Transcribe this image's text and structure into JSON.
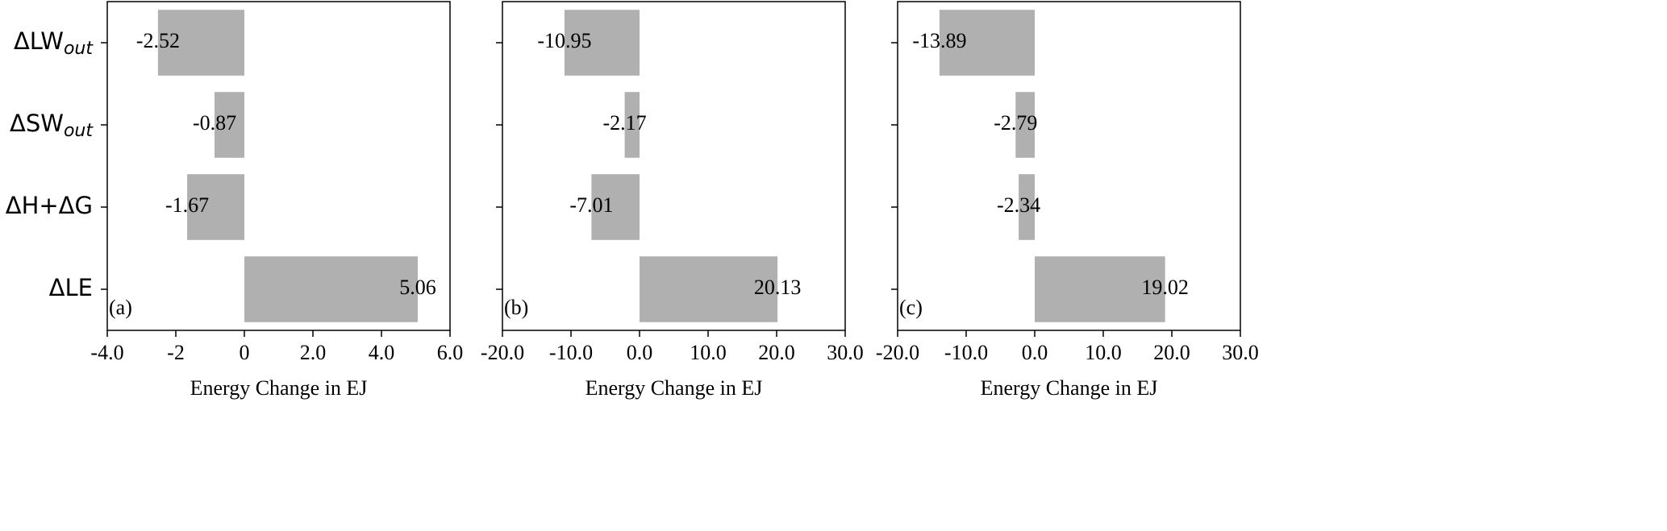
{
  "chart_data": [
    {
      "type": "barh",
      "categories": [
        "ΔLW",
        "ΔSW",
        "ΔH+ΔG",
        "ΔLE"
      ],
      "category_subscripts": [
        "out",
        "out",
        null,
        null
      ],
      "values": [
        -2.52,
        -0.87,
        -1.67,
        5.06
      ],
      "color": "#b0b0b0",
      "xlim": [
        -4,
        6
      ],
      "xticks": [
        {
          "value": -4,
          "label": "-4.0"
        },
        -2,
        0,
        {
          "value": 2,
          "label": "2.0"
        },
        {
          "value": 4,
          "label": "4.0"
        },
        {
          "value": 6,
          "label": "6.0"
        }
      ],
      "xlabel": "Energy Change in EJ",
      "panel_label": "(a)"
    },
    {
      "type": "barh",
      "categories": [
        null,
        null,
        null,
        null
      ],
      "values": [
        -10.95,
        -2.17,
        -7.01,
        20.13
      ],
      "color": "#b0b0b0",
      "xlim": [
        -20,
        30
      ],
      "xticks": [
        {
          "value": -20,
          "label": "-20.0"
        },
        {
          "value": -10,
          "label": "-10.0"
        },
        {
          "value": 0,
          "label": "0.0"
        },
        {
          "value": 10,
          "label": "10.0"
        },
        {
          "value": 20,
          "label": "20.0"
        },
        {
          "value": 30,
          "label": "30.0"
        }
      ],
      "xlabel": "Energy Change in EJ",
      "panel_label": "(b)"
    },
    {
      "type": "barh",
      "categories": [
        null,
        null,
        null,
        null
      ],
      "values": [
        -13.89,
        -2.79,
        -2.34,
        19.02
      ],
      "color": "#b0b0b0",
      "xlim": [
        -20,
        30
      ],
      "xticks": [
        {
          "value": -20,
          "label": "-20.0"
        },
        {
          "value": -10,
          "label": "-10.0"
        },
        {
          "value": 0,
          "label": "0.0"
        },
        {
          "value": 10,
          "label": "10.0"
        },
        {
          "value": 20,
          "label": "20.0"
        },
        {
          "value": 30,
          "label": "30.0"
        }
      ],
      "xlabel": "Energy Change in EJ",
      "panel_label": "(c)"
    }
  ]
}
